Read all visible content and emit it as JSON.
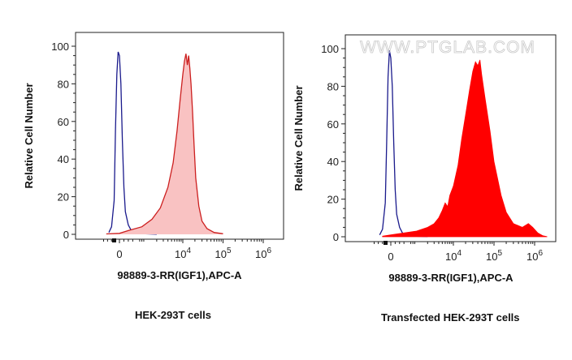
{
  "watermark": "WWW.PTGLAB.COM",
  "colors": {
    "control": "#1a1a8c",
    "sample": "#cc1f1f",
    "sample_fill_light": "#f9c2c2",
    "sample_fill_solid": "#ff0000"
  },
  "chart_data": [
    {
      "type": "area",
      "subtitle": "HEK-293T cells",
      "xlabel": "98889-3-RR(IGF1),APC-A",
      "ylabel": "Relative Cell Number",
      "ylim": [
        0,
        100
      ],
      "y_ticks": [
        "0",
        "20",
        "40",
        "60",
        "80",
        "100"
      ],
      "x_ticks": [
        {
          "base": "0",
          "exp": "",
          "value": 0
        },
        {
          "base": "10",
          "exp": "4",
          "value": 10000
        },
        {
          "base": "10",
          "exp": "5",
          "value": 100000
        },
        {
          "base": "10",
          "exp": "6",
          "value": 1000000
        }
      ],
      "x_scale": "biexponential",
      "grid": false,
      "series": [
        {
          "role": "control",
          "style": "outline",
          "x": [
            -400,
            -300,
            -200,
            -150,
            -100,
            -50,
            0,
            50,
            100,
            150,
            200,
            300,
            400,
            500,
            700,
            1000,
            2000
          ],
          "y": [
            1,
            4,
            18,
            55,
            85,
            97,
            95,
            80,
            50,
            25,
            12,
            5,
            2,
            1,
            0.5,
            0.3,
            0.1
          ]
        },
        {
          "role": "sample",
          "style": "light-fill",
          "x": [
            -500,
            0,
            300,
            800,
            1500,
            2500,
            4000,
            5500,
            7000,
            8500,
            10000,
            11000,
            12000,
            13000,
            14000,
            15000,
            16000,
            17500,
            19000,
            21000,
            25000,
            30000,
            40000,
            60000,
            100000
          ],
          "y": [
            0.2,
            0.5,
            2,
            4,
            8,
            14,
            25,
            38,
            55,
            72,
            85,
            92,
            96,
            90,
            95,
            88,
            80,
            65,
            48,
            30,
            15,
            7,
            3,
            1,
            0.3
          ]
        }
      ]
    },
    {
      "type": "area",
      "subtitle": "Transfected HEK-293T cells",
      "xlabel": "98889-3-RR(IGF1),APC-A",
      "ylabel": "Relative Cell Number",
      "ylim": [
        0,
        100
      ],
      "y_ticks": [
        "0",
        "20",
        "40",
        "60",
        "80",
        "100"
      ],
      "x_ticks": [
        {
          "base": "0",
          "exp": "",
          "value": 0
        },
        {
          "base": "10",
          "exp": "4",
          "value": 10000
        },
        {
          "base": "10",
          "exp": "5",
          "value": 100000
        },
        {
          "base": "10",
          "exp": "6",
          "value": 1000000
        }
      ],
      "x_scale": "biexponential",
      "grid": false,
      "series": [
        {
          "role": "control",
          "style": "outline",
          "x": [
            -400,
            -300,
            -200,
            -150,
            -100,
            -50,
            0,
            50,
            100,
            150,
            200,
            300,
            400,
            500,
            700,
            1000,
            2000
          ],
          "y": [
            1,
            4,
            18,
            50,
            85,
            99,
            95,
            80,
            50,
            25,
            12,
            5,
            2,
            1,
            0.5,
            0.3,
            0.1
          ]
        },
        {
          "role": "sample",
          "style": "solid-fill",
          "x": [
            -300,
            0,
            1000,
            2000,
            3000,
            4000,
            5000,
            6000,
            7000,
            8000,
            10000,
            13000,
            16000,
            20000,
            25000,
            30000,
            35000,
            40000,
            45000,
            50000,
            60000,
            80000,
            100000,
            150000,
            200000,
            300000,
            500000,
            700000,
            900000,
            1200000,
            1600000,
            2000000
          ],
          "y": [
            0.3,
            1,
            3,
            5,
            7,
            10,
            14,
            18,
            16,
            22,
            27,
            38,
            52,
            65,
            78,
            88,
            93,
            91,
            94,
            86,
            74,
            56,
            40,
            22,
            13,
            7,
            5,
            7,
            5,
            2,
            0.5,
            0.1
          ]
        }
      ]
    }
  ]
}
